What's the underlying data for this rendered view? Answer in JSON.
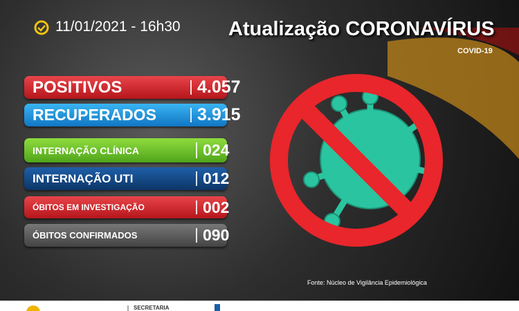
{
  "header": {
    "datetime": "11/01/2021 - 16h30",
    "title": "Atualização CORONAVÍRUS",
    "subtitle": "COVID-19"
  },
  "rows": [
    {
      "label": "POSITIVOS",
      "value": "4.057"
    },
    {
      "label": "RECUPERADOS",
      "value": "3.915"
    },
    {
      "label": "INTERNAÇÃO CLÍNICA",
      "value": "024"
    },
    {
      "label": "INTERNAÇÃO UTI",
      "value": "012"
    },
    {
      "label": "ÓBITOS EM INVESTIGAÇÃO",
      "value": "002"
    },
    {
      "label": "ÓBITOS CONFIRMADOS",
      "value": "090"
    }
  ],
  "footer": {
    "source": "Fonte: Núcleo de Vigilância Epidemiológica",
    "secretaria": "SECRETARIA"
  }
}
